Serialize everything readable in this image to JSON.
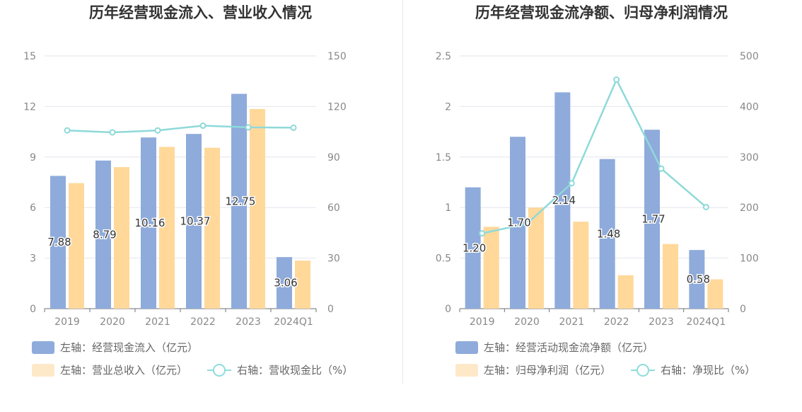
{
  "colors": {
    "bar1": "#8eabdb",
    "bar2": "#ffd89a",
    "line": "#8fd9d9",
    "legend_bar2": "#fde8c8",
    "axis_text": "#888888",
    "grid": "#e3e6ef"
  },
  "chart_data": [
    {
      "type": "bar",
      "title": "历年经营现金流入、营业收入情况",
      "categories": [
        "2019",
        "2020",
        "2021",
        "2022",
        "2023",
        "2024Q1"
      ],
      "y_left": {
        "ticks": [
          "0",
          "3",
          "6",
          "9",
          "12",
          "15"
        ],
        "ylim": [
          0,
          15
        ]
      },
      "y_right": {
        "ticks": [
          "0",
          "30",
          "60",
          "90",
          "120",
          "150"
        ],
        "ylim": [
          0,
          150
        ]
      },
      "series": [
        {
          "name": "左轴：经营现金流入（亿元）",
          "axis": "left",
          "kind": "bar",
          "values": [
            7.88,
            8.79,
            10.16,
            10.37,
            12.75,
            3.06
          ],
          "labels": [
            "7.88",
            "8.79",
            "10.16",
            "10.37",
            "12.75",
            "3.06"
          ]
        },
        {
          "name": "左轴：营业总收入（亿元）",
          "axis": "left",
          "kind": "bar",
          "values": [
            7.45,
            8.4,
            9.6,
            9.55,
            11.85,
            2.85
          ]
        },
        {
          "name": "右轴：营收现金比（%）",
          "axis": "right",
          "kind": "line",
          "values": [
            105.8,
            104.6,
            105.8,
            108.6,
            107.6,
            107.4
          ]
        }
      ],
      "grid": true,
      "legend_position": "bottom"
    },
    {
      "type": "bar",
      "title": "历年经营现金流净额、归母净利润情况",
      "categories": [
        "2019",
        "2020",
        "2021",
        "2022",
        "2023",
        "2024Q1"
      ],
      "y_left": {
        "ticks": [
          "0",
          "0.5",
          "1",
          "1.5",
          "2",
          "2.5"
        ],
        "ylim": [
          0,
          2.5
        ]
      },
      "y_right": {
        "ticks": [
          "0",
          "100",
          "200",
          "300",
          "400",
          "500"
        ],
        "ylim": [
          0,
          500
        ]
      },
      "series": [
        {
          "name": "左轴：经营活动现金流净额（亿元）",
          "axis": "left",
          "kind": "bar",
          "values": [
            1.2,
            1.7,
            2.14,
            1.48,
            1.77,
            0.58
          ],
          "labels": [
            "1.20",
            "1.70",
            "2.14",
            "1.48",
            "1.77",
            "0.58"
          ]
        },
        {
          "name": "左轴：归母净利润（亿元）",
          "axis": "left",
          "kind": "bar",
          "values": [
            0.81,
            1.0,
            0.86,
            0.33,
            0.64,
            0.29
          ]
        },
        {
          "name": "右轴：净现比（%）",
          "axis": "right",
          "kind": "line",
          "values": [
            149,
            168,
            248,
            453,
            277,
            201
          ]
        }
      ],
      "grid": true,
      "legend_position": "bottom"
    }
  ]
}
